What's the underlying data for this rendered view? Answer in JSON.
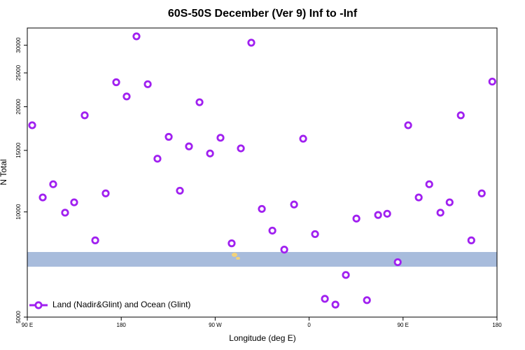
{
  "chart_data": {
    "type": "scatter",
    "title": "60S-50S December (Ver 9)   Inf to -Inf",
    "x_label": "Longitude (deg E)",
    "y_label": "N Total",
    "yscale": "log",
    "xlim": [
      90,
      540
    ],
    "ylim": [
      5000,
      33600
    ],
    "xticks": [
      {
        "value": 90,
        "label": "90 E"
      },
      180,
      {
        "value": 270,
        "label": "90 W"
      },
      {
        "value": 360,
        "label": "0"
      },
      {
        "value": 450,
        "label": "90 E"
      },
      {
        "value": 540,
        "label": "180"
      }
    ],
    "yticks": [
      5000,
      10000,
      15000,
      20000,
      25000,
      30000
    ],
    "legend": "lower left",
    "series": [
      {
        "name": "Land (Nadir&Glint) and Ocean (Glint)",
        "color": "#a020f0",
        "x": [
          94.7,
          104.8,
          114.8,
          126.2,
          134.9,
          145.0,
          155.1,
          165.1,
          175.2,
          185.2,
          194.6,
          205.4,
          214.7,
          225.5,
          236.2,
          244.9,
          255.0,
          265.1,
          275.1,
          285.8,
          294.6,
          304.6,
          314.7,
          324.8,
          336.2,
          345.6,
          354.3,
          365.7,
          375.1,
          385.2,
          395.2,
          405.3,
          415.4,
          426.1,
          434.8,
          444.9,
          454.9,
          465.0,
          475.1,
          485.8,
          494.6,
          505.3,
          515.4,
          525.4,
          535.5
        ],
        "values": [
          17700,
          11000,
          12000,
          9950,
          10650,
          18900,
          8290,
          11300,
          23500,
          21400,
          31800,
          23200,
          14200,
          16400,
          11500,
          15400,
          20600,
          14700,
          16300,
          8130,
          15200,
          30500,
          10200,
          8840,
          7800,
          10500,
          16200,
          8640,
          5640,
          5430,
          6600,
          9570,
          5590,
          9800,
          9880,
          7180,
          17700,
          11000,
          12000,
          9950,
          10650,
          18900,
          8290,
          11300,
          23600
        ]
      }
    ]
  }
}
